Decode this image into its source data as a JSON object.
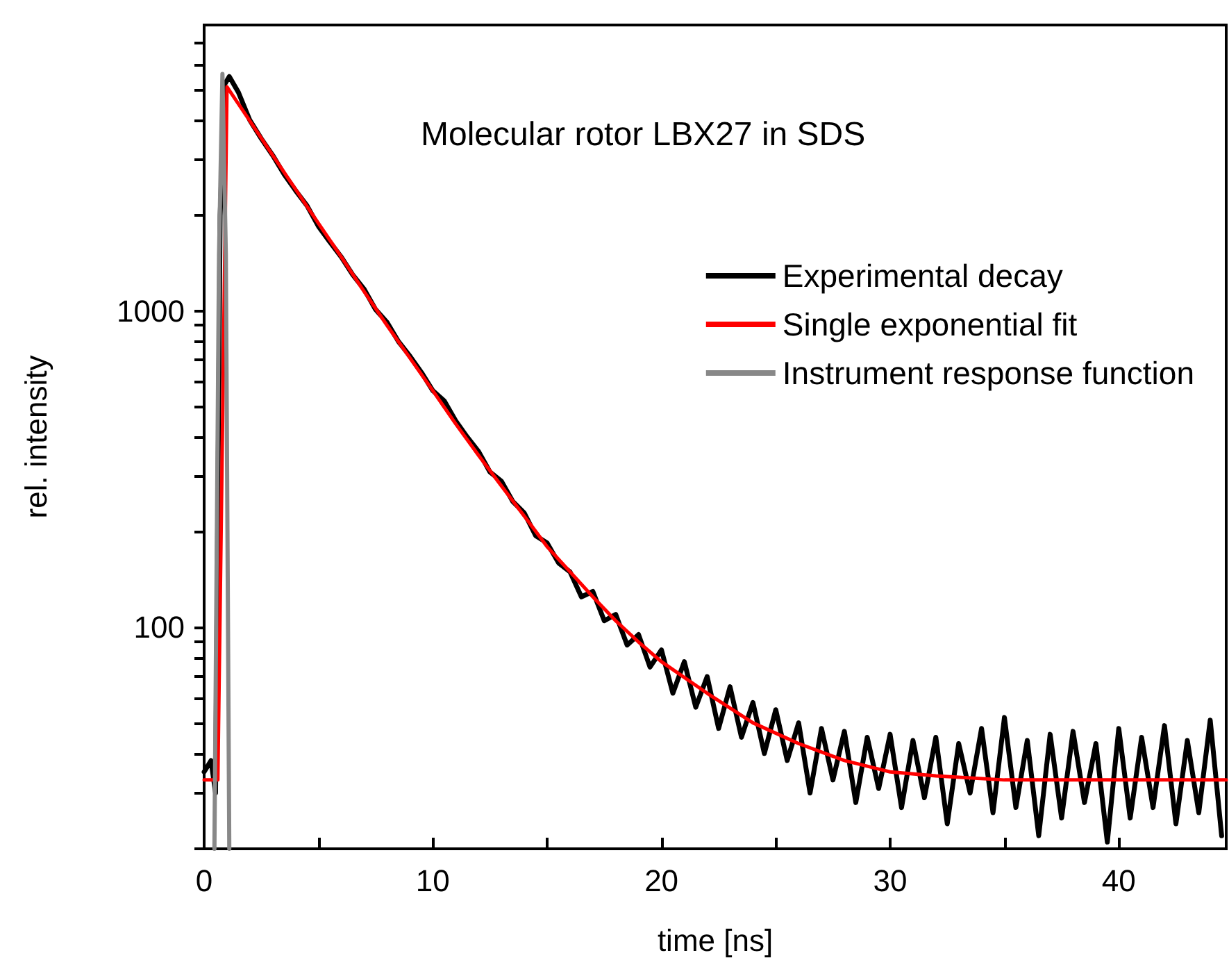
{
  "chart_data": {
    "type": "line",
    "title": "Molecular rotor LBX27 in SDS",
    "xlabel": "time [ns]",
    "ylabel": "rel. intensity",
    "log": "y",
    "xlim": [
      0,
      44.7
    ],
    "ylim": [
      20,
      8000
    ],
    "xticks": [
      0,
      {
        "value": 5,
        "label": null
      },
      10,
      {
        "value": 15,
        "label": null
      },
      20,
      {
        "value": 25,
        "label": null
      },
      30,
      {
        "value": 35,
        "label": null
      },
      40
    ],
    "yticks": [
      {
        "value": 20,
        "label": null
      },
      {
        "value": 30,
        "label": null
      },
      {
        "value": 40,
        "label": null
      },
      {
        "value": 50,
        "label": null
      },
      {
        "value": 60,
        "label": null
      },
      {
        "value": 70,
        "label": null
      },
      {
        "value": 80,
        "label": null
      },
      {
        "value": 90,
        "label": null
      },
      100,
      {
        "value": 200,
        "label": null
      },
      {
        "value": 300,
        "label": null
      },
      {
        "value": 400,
        "label": null
      },
      {
        "value": 500,
        "label": null
      },
      {
        "value": 600,
        "label": null
      },
      {
        "value": 700,
        "label": null
      },
      {
        "value": 800,
        "label": null
      },
      {
        "value": 900,
        "label": null
      },
      1000,
      {
        "value": 2000,
        "label": null
      },
      {
        "value": 3000,
        "label": null
      },
      {
        "value": 4000,
        "label": null
      },
      {
        "value": 5000,
        "label": null
      },
      {
        "value": 6000,
        "label": null
      },
      {
        "value": 7000,
        "label": null
      }
    ],
    "grid": false,
    "legend": "top right",
    "marker": "none",
    "line_style": "solid",
    "series": [
      {
        "name": "Experimental decay",
        "color": "#000000",
        "x": [
          0,
          0.3,
          0.5,
          0.7,
          0.9,
          1.1,
          1.5,
          2,
          2.5,
          3,
          3.5,
          4,
          4.5,
          5,
          5.5,
          6,
          6.5,
          7,
          7.5,
          8,
          8.5,
          9,
          9.5,
          10,
          10.5,
          11,
          11.5,
          12,
          12.5,
          13,
          13.5,
          14,
          14.5,
          15,
          15.5,
          16,
          16.5,
          17,
          17.5,
          18,
          18.5,
          19,
          19.5,
          20,
          20.5,
          21,
          21.5,
          22,
          22.5,
          23,
          23.5,
          24,
          24.5,
          25,
          25.5,
          26,
          26.5,
          27,
          27.5,
          28,
          28.5,
          29,
          29.5,
          30,
          30.5,
          31,
          31.5,
          32,
          32.5,
          33,
          33.5,
          34,
          34.5,
          35,
          35.5,
          36,
          36.5,
          37,
          37.5,
          38,
          38.5,
          39,
          39.5,
          40,
          40.5,
          41,
          41.5,
          42,
          42.5,
          43,
          43.5,
          44,
          44.5
        ],
        "values": [
          35,
          38,
          30,
          2000,
          5200,
          5500,
          4900,
          4000,
          3500,
          3100,
          2700,
          2400,
          2150,
          1850,
          1650,
          1480,
          1300,
          1170,
          1010,
          920,
          800,
          720,
          640,
          560,
          520,
          450,
          400,
          360,
          310,
          290,
          250,
          230,
          195,
          185,
          160,
          150,
          125,
          130,
          105,
          110,
          88,
          95,
          75,
          85,
          62,
          78,
          56,
          70,
          48,
          65,
          45,
          58,
          40,
          55,
          38,
          50,
          30,
          48,
          33,
          47,
          28,
          45,
          31,
          46,
          27,
          44,
          29,
          45,
          24,
          43,
          30,
          48,
          26,
          52,
          27,
          44,
          22,
          46,
          25,
          47,
          28,
          43,
          21,
          48,
          25,
          45,
          27,
          49,
          24,
          44,
          26,
          51,
          22
        ]
      },
      {
        "name": "Single exponential fit",
        "color": "#ff0000",
        "x": [
          0,
          0.6,
          1.0,
          2,
          3,
          4,
          5,
          6,
          7,
          8,
          9,
          10,
          11,
          12,
          13,
          14,
          15,
          16,
          17,
          18,
          19,
          20,
          22,
          24,
          26,
          28,
          30,
          32,
          35,
          40,
          44.7
        ],
        "values": [
          33,
          33,
          5100,
          3980,
          3100,
          2420,
          1890,
          1480,
          1150,
          900,
          710,
          560,
          440,
          350,
          280,
          225,
          180,
          150,
          125,
          105,
          90,
          78,
          62,
          50,
          43,
          38,
          35,
          34,
          33,
          33,
          33
        ]
      },
      {
        "name": "Instrument response function",
        "color": "#888888",
        "x": [
          0.45,
          0.65,
          0.8,
          0.95,
          1.1
        ],
        "values": [
          20,
          1500,
          5600,
          1500,
          20
        ]
      }
    ]
  }
}
